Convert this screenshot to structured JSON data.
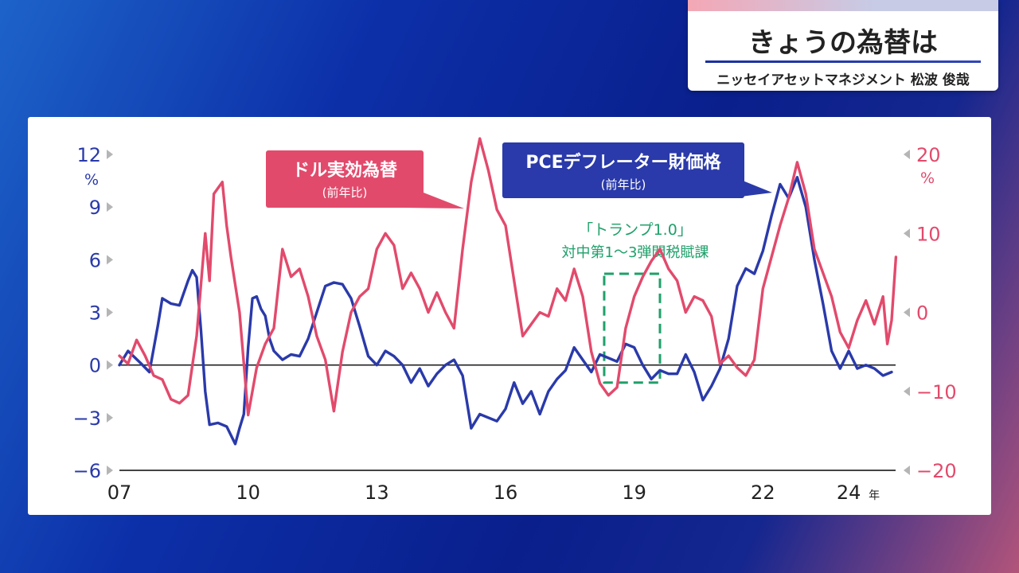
{
  "header": {
    "title": "きょうの為替は",
    "subtitle": "ニッセイアセットマネジメント 松波 俊哉"
  },
  "chart_data": {
    "type": "line",
    "title": "",
    "x_ticks": [
      "07",
      "10",
      "13",
      "16",
      "19",
      "22",
      "24"
    ],
    "x_unit": "年",
    "x_range": [
      2007,
      2025
    ],
    "left_axis": {
      "ticks": [
        "12",
        "9",
        "6",
        "3",
        "0",
        "−3",
        "−6"
      ],
      "unit": "%",
      "range": [
        -6,
        12
      ]
    },
    "right_axis": {
      "ticks": [
        "20",
        "10",
        "0",
        "−10",
        "−20"
      ],
      "unit": "%",
      "range": [
        -20,
        20
      ]
    },
    "colors": {
      "pce": "#2a3aaa",
      "dollar": "#e24a6c",
      "annotation": "#1fa06a",
      "zero_line": "#222222"
    },
    "series": [
      {
        "name": "PCEデフレーター財価格",
        "name_sub": "(前年比)",
        "axis": "left",
        "points": [
          [
            2007.0,
            0.0
          ],
          [
            2007.2,
            0.8
          ],
          [
            2007.5,
            0.1
          ],
          [
            2007.7,
            -0.4
          ],
          [
            2007.9,
            2.3
          ],
          [
            2008.0,
            3.8
          ],
          [
            2008.2,
            3.5
          ],
          [
            2008.4,
            3.4
          ],
          [
            2008.6,
            4.8
          ],
          [
            2008.7,
            5.4
          ],
          [
            2008.8,
            5.0
          ],
          [
            2008.9,
            2.0
          ],
          [
            2009.0,
            -1.5
          ],
          [
            2009.1,
            -3.4
          ],
          [
            2009.3,
            -3.3
          ],
          [
            2009.5,
            -3.5
          ],
          [
            2009.7,
            -4.5
          ],
          [
            2009.8,
            -3.6
          ],
          [
            2009.9,
            -2.8
          ],
          [
            2010.0,
            1.0
          ],
          [
            2010.1,
            3.8
          ],
          [
            2010.2,
            3.9
          ],
          [
            2010.3,
            3.2
          ],
          [
            2010.4,
            2.8
          ],
          [
            2010.5,
            1.5
          ],
          [
            2010.6,
            0.8
          ],
          [
            2010.8,
            0.3
          ],
          [
            2011.0,
            0.6
          ],
          [
            2011.2,
            0.5
          ],
          [
            2011.4,
            1.5
          ],
          [
            2011.6,
            3.0
          ],
          [
            2011.8,
            4.5
          ],
          [
            2012.0,
            4.7
          ],
          [
            2012.2,
            4.6
          ],
          [
            2012.4,
            3.8
          ],
          [
            2012.6,
            2.2
          ],
          [
            2012.8,
            0.5
          ],
          [
            2013.0,
            0.0
          ],
          [
            2013.2,
            0.8
          ],
          [
            2013.4,
            0.5
          ],
          [
            2013.6,
            0.0
          ],
          [
            2013.8,
            -1.0
          ],
          [
            2014.0,
            -0.2
          ],
          [
            2014.2,
            -1.2
          ],
          [
            2014.4,
            -0.5
          ],
          [
            2014.6,
            0.0
          ],
          [
            2014.8,
            0.3
          ],
          [
            2015.0,
            -0.6
          ],
          [
            2015.2,
            -3.6
          ],
          [
            2015.4,
            -2.8
          ],
          [
            2015.6,
            -3.0
          ],
          [
            2015.8,
            -3.2
          ],
          [
            2016.0,
            -2.5
          ],
          [
            2016.2,
            -1.0
          ],
          [
            2016.4,
            -2.2
          ],
          [
            2016.6,
            -1.5
          ],
          [
            2016.8,
            -2.8
          ],
          [
            2017.0,
            -1.5
          ],
          [
            2017.2,
            -0.8
          ],
          [
            2017.4,
            -0.3
          ],
          [
            2017.6,
            1.0
          ],
          [
            2017.8,
            0.3
          ],
          [
            2018.0,
            -0.4
          ],
          [
            2018.2,
            0.6
          ],
          [
            2018.4,
            0.4
          ],
          [
            2018.6,
            0.2
          ],
          [
            2018.8,
            1.2
          ],
          [
            2019.0,
            1.0
          ],
          [
            2019.2,
            0.0
          ],
          [
            2019.4,
            -0.8
          ],
          [
            2019.6,
            -0.3
          ],
          [
            2019.8,
            -0.5
          ],
          [
            2020.0,
            -0.5
          ],
          [
            2020.2,
            0.6
          ],
          [
            2020.4,
            -0.4
          ],
          [
            2020.6,
            -2.0
          ],
          [
            2020.8,
            -1.2
          ],
          [
            2021.0,
            -0.2
          ],
          [
            2021.2,
            1.5
          ],
          [
            2021.4,
            4.5
          ],
          [
            2021.6,
            5.5
          ],
          [
            2021.8,
            5.2
          ],
          [
            2022.0,
            6.5
          ],
          [
            2022.2,
            8.5
          ],
          [
            2022.4,
            10.3
          ],
          [
            2022.6,
            9.5
          ],
          [
            2022.8,
            10.7
          ],
          [
            2023.0,
            9.0
          ],
          [
            2023.2,
            6.0
          ],
          [
            2023.4,
            3.5
          ],
          [
            2023.6,
            0.8
          ],
          [
            2023.8,
            -0.2
          ],
          [
            2024.0,
            0.8
          ],
          [
            2024.2,
            -0.2
          ],
          [
            2024.4,
            0.0
          ],
          [
            2024.6,
            -0.2
          ],
          [
            2024.8,
            -0.6
          ],
          [
            2025.0,
            -0.4
          ]
        ]
      },
      {
        "name": "ドル実効為替",
        "name_sub": "(前年比)",
        "axis": "right",
        "points": [
          [
            2007.0,
            -5.5
          ],
          [
            2007.2,
            -6.5
          ],
          [
            2007.4,
            -3.5
          ],
          [
            2007.6,
            -5.5
          ],
          [
            2007.8,
            -8.0
          ],
          [
            2008.0,
            -8.5
          ],
          [
            2008.2,
            -11.0
          ],
          [
            2008.4,
            -11.5
          ],
          [
            2008.6,
            -10.5
          ],
          [
            2008.8,
            -3.0
          ],
          [
            2009.0,
            10.0
          ],
          [
            2009.1,
            4.0
          ],
          [
            2009.2,
            15.0
          ],
          [
            2009.4,
            16.5
          ],
          [
            2009.5,
            11.0
          ],
          [
            2009.6,
            7.0
          ],
          [
            2009.8,
            0.0
          ],
          [
            2010.0,
            -13.0
          ],
          [
            2010.2,
            -7.0
          ],
          [
            2010.4,
            -4.0
          ],
          [
            2010.6,
            -2.0
          ],
          [
            2010.8,
            8.0
          ],
          [
            2011.0,
            4.5
          ],
          [
            2011.2,
            5.5
          ],
          [
            2011.4,
            2.0
          ],
          [
            2011.6,
            -3.0
          ],
          [
            2011.8,
            -6.0
          ],
          [
            2012.0,
            -12.5
          ],
          [
            2012.2,
            -5.0
          ],
          [
            2012.4,
            0.0
          ],
          [
            2012.6,
            2.0
          ],
          [
            2012.8,
            3.0
          ],
          [
            2013.0,
            8.0
          ],
          [
            2013.2,
            10.0
          ],
          [
            2013.4,
            8.5
          ],
          [
            2013.6,
            3.0
          ],
          [
            2013.8,
            5.0
          ],
          [
            2014.0,
            3.0
          ],
          [
            2014.2,
            0.0
          ],
          [
            2014.4,
            2.5
          ],
          [
            2014.6,
            0.0
          ],
          [
            2014.8,
            -2.0
          ],
          [
            2015.0,
            8.0
          ],
          [
            2015.2,
            16.5
          ],
          [
            2015.4,
            22.0
          ],
          [
            2015.6,
            18.0
          ],
          [
            2015.8,
            13.0
          ],
          [
            2016.0,
            11.0
          ],
          [
            2016.2,
            4.0
          ],
          [
            2016.4,
            -3.0
          ],
          [
            2016.6,
            -1.5
          ],
          [
            2016.8,
            0.0
          ],
          [
            2017.0,
            -0.5
          ],
          [
            2017.2,
            3.0
          ],
          [
            2017.4,
            1.5
          ],
          [
            2017.6,
            5.5
          ],
          [
            2017.8,
            2.0
          ],
          [
            2018.0,
            -5.0
          ],
          [
            2018.2,
            -9.0
          ],
          [
            2018.4,
            -10.5
          ],
          [
            2018.6,
            -9.5
          ],
          [
            2018.8,
            -2.0
          ],
          [
            2019.0,
            2.0
          ],
          [
            2019.2,
            4.5
          ],
          [
            2019.4,
            6.5
          ],
          [
            2019.6,
            8.0
          ],
          [
            2019.8,
            5.5
          ],
          [
            2020.0,
            4.0
          ],
          [
            2020.2,
            0.0
          ],
          [
            2020.4,
            2.0
          ],
          [
            2020.6,
            1.5
          ],
          [
            2020.8,
            -0.5
          ],
          [
            2021.0,
            -6.5
          ],
          [
            2021.2,
            -5.5
          ],
          [
            2021.4,
            -7.0
          ],
          [
            2021.6,
            -8.0
          ],
          [
            2021.8,
            -6.0
          ],
          [
            2022.0,
            3.0
          ],
          [
            2022.2,
            7.0
          ],
          [
            2022.4,
            11.0
          ],
          [
            2022.6,
            14.5
          ],
          [
            2022.8,
            19.0
          ],
          [
            2023.0,
            15.0
          ],
          [
            2023.2,
            8.0
          ],
          [
            2023.4,
            5.0
          ],
          [
            2023.6,
            2.0
          ],
          [
            2023.8,
            -2.5
          ],
          [
            2024.0,
            -4.5
          ],
          [
            2024.2,
            -1.0
          ],
          [
            2024.4,
            1.5
          ],
          [
            2024.6,
            -1.5
          ],
          [
            2024.8,
            2.0
          ],
          [
            2024.9,
            -4.0
          ],
          [
            2025.0,
            -1.0
          ],
          [
            2025.1,
            7.0
          ]
        ]
      }
    ],
    "annotation": {
      "line1": "「トランプ1.0」",
      "line2": "対中第1〜3弾関税賦課",
      "x_range": [
        2018.3,
        2019.6
      ],
      "y_range_left": [
        -1.0,
        5.2
      ]
    }
  }
}
